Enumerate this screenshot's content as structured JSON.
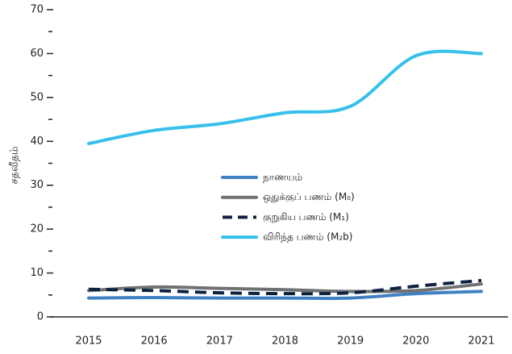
{
  "chart_data": {
    "type": "line",
    "y_label": "சதவீதம்",
    "categories": [
      "2015",
      "2016",
      "2017",
      "2018",
      "2019",
      "2020",
      "2021"
    ],
    "series": [
      {
        "name": "நாணயம்",
        "color": "#3f80c2",
        "values": [
          4.3,
          4.4,
          4.3,
          4.3,
          4.3,
          5.3,
          5.8
        ]
      },
      {
        "name": "ஒதுக்குப் பணம் (M₀)",
        "color": "#707173",
        "values": [
          6.0,
          6.8,
          6.5,
          6.2,
          5.8,
          6.0,
          7.5
        ]
      },
      {
        "name": "குறுகிய பணம் (M₁)",
        "color": "#0d2240",
        "dashed": true,
        "values": [
          6.3,
          6.0,
          5.5,
          5.3,
          5.5,
          7.0,
          8.3
        ]
      },
      {
        "name": "விரிந்த பணம் (M₂b)",
        "color": "#36c0ea",
        "values": [
          39.5,
          42.5,
          44.0,
          46.5,
          48.0,
          59.5,
          60.0
        ]
      }
    ],
    "ylim": [
      0,
      70
    ],
    "yticks": [
      0,
      10,
      20,
      30,
      40,
      50,
      60,
      70
    ],
    "yminorticks": [
      5,
      15,
      25,
      35,
      45,
      55,
      65
    ],
    "grid": false
  }
}
